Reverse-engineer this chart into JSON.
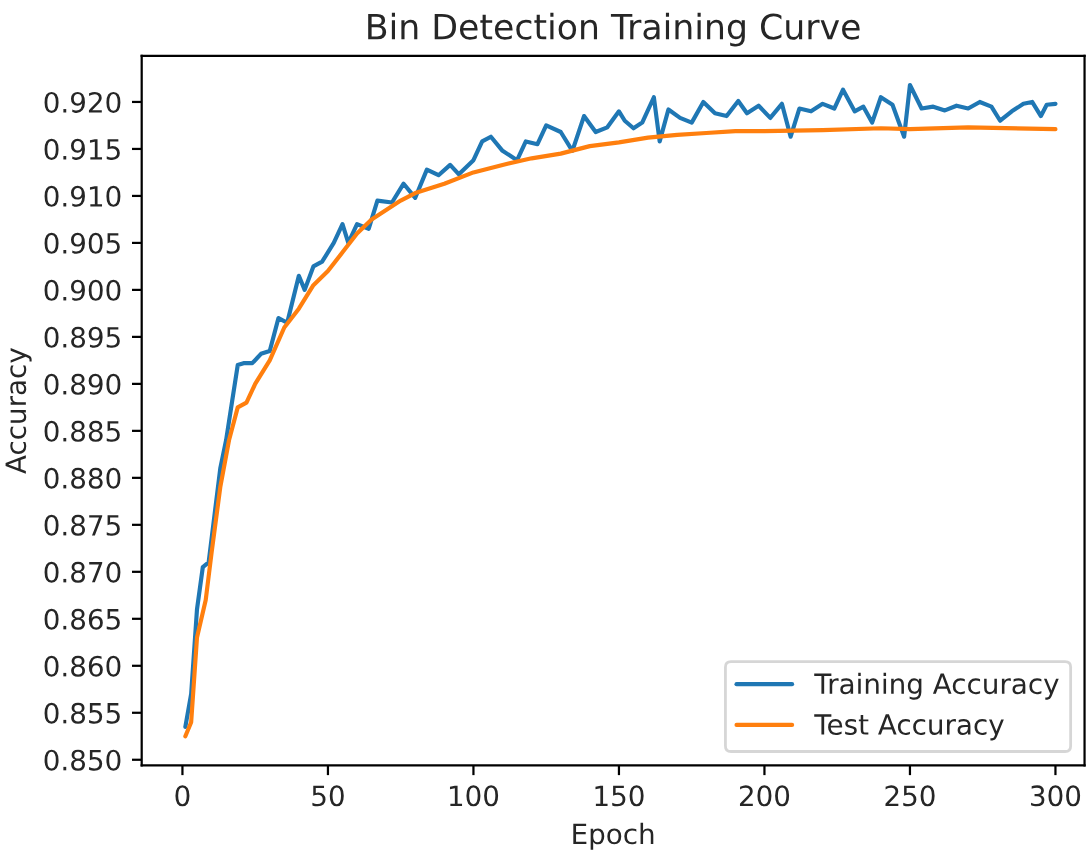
{
  "chart_data": {
    "type": "line",
    "title": "Bin Detection Training Curve",
    "xlabel": "Epoch",
    "ylabel": "Accuracy",
    "xlim": [
      -14,
      310
    ],
    "ylim": [
      0.8494,
      0.9249
    ],
    "xticks": [
      0,
      50,
      100,
      150,
      200,
      250,
      300
    ],
    "yticks": [
      {
        "value": 0.85,
        "label": "0.850"
      },
      {
        "value": 0.855,
        "label": "0.855"
      },
      {
        "value": 0.86,
        "label": "0.860"
      },
      {
        "value": 0.865,
        "label": "0.865"
      },
      {
        "value": 0.87,
        "label": "0.870"
      },
      {
        "value": 0.875,
        "label": "0.875"
      },
      {
        "value": 0.88,
        "label": "0.880"
      },
      {
        "value": 0.885,
        "label": "0.885"
      },
      {
        "value": 0.89,
        "label": "0.890"
      },
      {
        "value": 0.895,
        "label": "0.895"
      },
      {
        "value": 0.9,
        "label": "0.900"
      },
      {
        "value": 0.905,
        "label": "0.905"
      },
      {
        "value": 0.91,
        "label": "0.910"
      },
      {
        "value": 0.915,
        "label": "0.915"
      },
      {
        "value": 0.92,
        "label": "0.920"
      }
    ],
    "grid": false,
    "legend": "bottom right",
    "series": [
      {
        "name": "Training Accuracy",
        "color": "#1f77b4",
        "x": [
          1,
          3,
          5,
          7,
          9,
          11,
          13,
          15,
          17,
          19,
          21,
          24,
          27,
          30,
          33,
          36,
          40,
          42,
          45,
          48,
          52,
          55,
          57,
          60,
          64,
          67,
          72,
          76,
          80,
          84,
          88,
          92,
          95,
          100,
          103,
          106,
          110,
          115,
          118,
          122,
          125,
          130,
          134,
          138,
          142,
          146,
          150,
          152,
          155,
          158,
          162,
          164,
          167,
          171,
          175,
          179,
          183,
          187,
          191,
          194,
          198,
          202,
          206,
          209,
          212,
          216,
          220,
          224,
          227,
          231,
          234,
          237,
          240,
          244,
          248,
          250,
          254,
          258,
          262,
          266,
          270,
          274,
          278,
          281,
          285,
          289,
          292,
          295,
          297,
          300
        ],
        "values": [
          0.8535,
          0.857,
          0.866,
          0.8705,
          0.871,
          0.876,
          0.881,
          0.884,
          0.888,
          0.892,
          0.8922,
          0.8922,
          0.8932,
          0.8935,
          0.897,
          0.8965,
          0.9015,
          0.9,
          0.9025,
          0.903,
          0.905,
          0.907,
          0.905,
          0.907,
          0.9065,
          0.9095,
          0.9093,
          0.9113,
          0.9098,
          0.9128,
          0.9122,
          0.9133,
          0.9123,
          0.9138,
          0.9158,
          0.9163,
          0.9148,
          0.9138,
          0.9158,
          0.9155,
          0.9175,
          0.9168,
          0.9148,
          0.9185,
          0.9168,
          0.9173,
          0.919,
          0.918,
          0.9172,
          0.9178,
          0.9205,
          0.9158,
          0.9192,
          0.9183,
          0.9178,
          0.92,
          0.9188,
          0.9185,
          0.9201,
          0.9188,
          0.9196,
          0.9183,
          0.9198,
          0.9163,
          0.9193,
          0.919,
          0.9198,
          0.9193,
          0.9213,
          0.919,
          0.9195,
          0.9178,
          0.9205,
          0.9197,
          0.9163,
          0.9218,
          0.9193,
          0.9195,
          0.9191,
          0.9196,
          0.9193,
          0.92,
          0.9195,
          0.918,
          0.919,
          0.9198,
          0.92,
          0.9185,
          0.9197,
          0.9198
        ]
      },
      {
        "name": "Test Accuracy",
        "color": "#ff7f0e",
        "x": [
          1,
          3,
          5,
          8,
          10,
          13,
          16,
          19,
          22,
          25,
          30,
          35,
          40,
          45,
          50,
          55,
          60,
          65,
          70,
          75,
          80,
          90,
          100,
          110,
          120,
          130,
          140,
          150,
          160,
          170,
          180,
          190,
          200,
          220,
          240,
          250,
          270,
          300
        ],
        "values": [
          0.8525,
          0.854,
          0.863,
          0.867,
          0.872,
          0.879,
          0.884,
          0.8875,
          0.888,
          0.89,
          0.8925,
          0.896,
          0.898,
          0.9005,
          0.902,
          0.904,
          0.906,
          0.9075,
          0.9085,
          0.9095,
          0.9103,
          0.9113,
          0.9125,
          0.9133,
          0.914,
          0.9145,
          0.9153,
          0.9157,
          0.9162,
          0.9165,
          0.9167,
          0.9169,
          0.9169,
          0.917,
          0.9172,
          0.9171,
          0.9173,
          0.9171
        ]
      }
    ]
  }
}
